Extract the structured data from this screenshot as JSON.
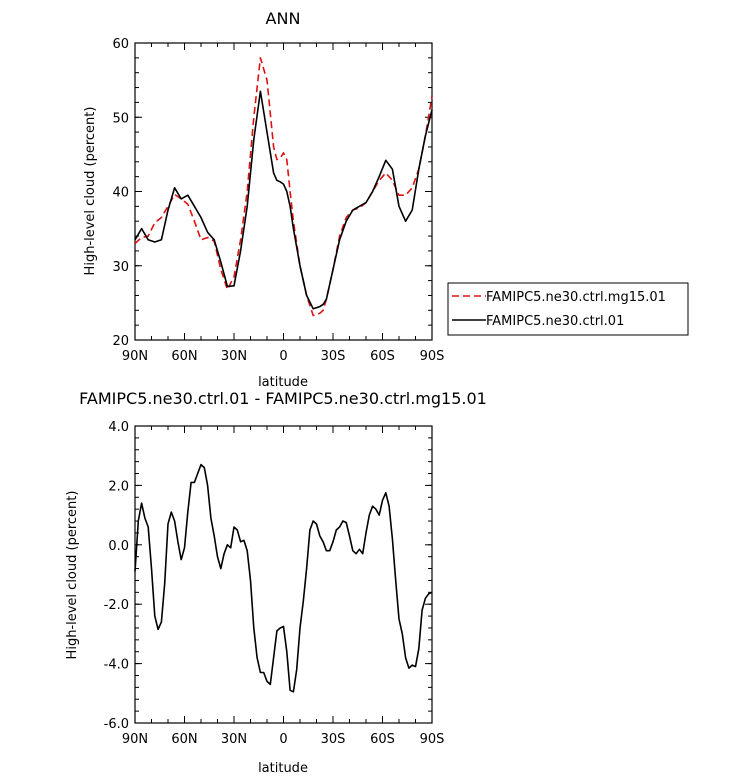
{
  "chart_data": [
    {
      "type": "line",
      "title": "ANN",
      "xlabel": "latitude",
      "ylabel": "High-level cloud (percent)",
      "xlim": [
        90,
        -90
      ],
      "ylim": [
        20,
        60
      ],
      "x_tick_values": [
        90,
        60,
        30,
        0,
        -30,
        -60,
        -90
      ],
      "x_tick_labels": [
        "90N",
        "60N",
        "30N",
        "0",
        "30S",
        "60S",
        "90S"
      ],
      "y_tick_values": [
        20,
        30,
        40,
        50,
        60
      ],
      "y_tick_labels": [
        "20",
        "30",
        "40",
        "50",
        "60"
      ],
      "legend_position": "right",
      "series": [
        {
          "name": "FAMIPC5.ne30.ctrl.mg15.01",
          "color": "#e01010",
          "dash": "dashed",
          "x": [
            90,
            86,
            82,
            78,
            74,
            70,
            66,
            62,
            58,
            54,
            50,
            46,
            42,
            38,
            34,
            30,
            26,
            22,
            18,
            14,
            10,
            6,
            4,
            2,
            0,
            -2,
            -4,
            -6,
            -10,
            -14,
            -18,
            -22,
            -24,
            -26,
            -30,
            -34,
            -38,
            -42,
            -46,
            -50,
            -54,
            -58,
            -62,
            -66,
            -70,
            -74,
            -78,
            -82,
            -86,
            -90
          ],
          "y": [
            33,
            33.8,
            34,
            35.8,
            36.5,
            38,
            39.6,
            39,
            38.3,
            36,
            33.5,
            33.8,
            33.3,
            29.5,
            26.8,
            28.5,
            33.5,
            40,
            50,
            58,
            55,
            46,
            44.3,
            44.5,
            45.2,
            44.3,
            40,
            36,
            30,
            26,
            23.3,
            23.6,
            24,
            25.5,
            29.5,
            34,
            36.5,
            37.5,
            37.8,
            38.5,
            40,
            41.5,
            42.5,
            41.5,
            39.5,
            39.5,
            40.5,
            43,
            47.5,
            52.8
          ]
        },
        {
          "name": "FAMIPC5.ne30.ctrl.01",
          "color": "#000000",
          "dash": "solid",
          "x": [
            90,
            86,
            82,
            78,
            74,
            70,
            66,
            62,
            58,
            54,
            50,
            46,
            42,
            38,
            34,
            30,
            26,
            22,
            18,
            14,
            10,
            6,
            4,
            2,
            0,
            -2,
            -4,
            -6,
            -10,
            -14,
            -18,
            -22,
            -24,
            -26,
            -30,
            -34,
            -38,
            -42,
            -46,
            -50,
            -54,
            -58,
            -62,
            -66,
            -70,
            -74,
            -78,
            -82,
            -86,
            -90
          ],
          "y": [
            33.5,
            35,
            33.5,
            33.2,
            33.5,
            37.5,
            40.5,
            39,
            39.5,
            38,
            36.5,
            34.5,
            33.5,
            30.5,
            27.2,
            27.3,
            32,
            38,
            47,
            53.5,
            48,
            42.5,
            41.5,
            41.3,
            41,
            40,
            38,
            35,
            30,
            26,
            24.2,
            24.5,
            24.8,
            25.5,
            29.5,
            33.5,
            36,
            37.5,
            38,
            38.5,
            40,
            42,
            44.2,
            43,
            38,
            36,
            37.5,
            43,
            47.5,
            51
          ]
        }
      ]
    },
    {
      "type": "line",
      "title": "FAMIPC5.ne30.ctrl.01 - FAMIPC5.ne30.ctrl.mg15.01",
      "xlabel": "latitude",
      "ylabel": "High-level cloud (percent)",
      "xlim": [
        90,
        -90
      ],
      "ylim": [
        -6,
        4
      ],
      "x_tick_values": [
        90,
        60,
        30,
        0,
        -30,
        -60,
        -90
      ],
      "x_tick_labels": [
        "90N",
        "60N",
        "30N",
        "0",
        "30S",
        "60S",
        "90S"
      ],
      "y_tick_values": [
        -6,
        -4,
        -2,
        0,
        2,
        4
      ],
      "y_tick_labels": [
        "-6.0",
        "-4.0",
        "-2.0",
        "0.0",
        "2.0",
        "4.0"
      ],
      "series": [
        {
          "color": "#000000",
          "dash": "solid",
          "x": [
            90,
            88,
            86,
            84,
            82,
            80,
            78,
            76,
            74,
            72,
            70,
            68,
            66,
            64,
            62,
            60,
            58,
            56,
            54,
            52,
            50,
            48,
            46,
            44,
            42,
            40,
            38,
            36,
            34,
            32,
            30,
            28,
            26,
            24,
            22,
            20,
            18,
            16,
            14,
            12,
            10,
            8,
            6,
            4,
            2,
            0,
            -2,
            -4,
            -6,
            -8,
            -10,
            -12,
            -14,
            -16,
            -18,
            -20,
            -22,
            -24,
            -26,
            -28,
            -30,
            -32,
            -34,
            -36,
            -38,
            -40,
            -42,
            -44,
            -46,
            -48,
            -50,
            -52,
            -54,
            -56,
            -58,
            -60,
            -62,
            -64,
            -66,
            -68,
            -70,
            -72,
            -74,
            -76,
            -78,
            -80,
            -82,
            -84,
            -86,
            -88,
            -90
          ],
          "y": [
            -0.9,
            0.8,
            1.4,
            0.9,
            0.6,
            -0.8,
            -2.4,
            -2.85,
            -2.6,
            -1.3,
            0.7,
            1.1,
            0.8,
            0.1,
            -0.5,
            -0.1,
            1.1,
            2.1,
            2.1,
            2.4,
            2.7,
            2.6,
            2.0,
            0.9,
            0.3,
            -0.4,
            -0.8,
            -0.3,
            0.0,
            -0.1,
            0.6,
            0.5,
            0.1,
            0.15,
            -0.2,
            -1.2,
            -2.8,
            -3.8,
            -4.3,
            -4.3,
            -4.6,
            -4.7,
            -3.8,
            -2.9,
            -2.8,
            -2.75,
            -3.6,
            -4.9,
            -4.95,
            -4.2,
            -2.8,
            -1.9,
            -0.8,
            0.5,
            0.8,
            0.7,
            0.3,
            0.1,
            -0.2,
            -0.2,
            0.1,
            0.5,
            0.6,
            0.8,
            0.75,
            0.3,
            -0.2,
            -0.3,
            -0.15,
            -0.3,
            0.4,
            1.0,
            1.3,
            1.2,
            1.0,
            1.5,
            1.75,
            1.3,
            0.2,
            -1.2,
            -2.5,
            -3.0,
            -3.8,
            -4.15,
            -4.05,
            -4.1,
            -3.5,
            -2.2,
            -1.8,
            -1.65,
            -1.6
          ]
        }
      ]
    }
  ]
}
